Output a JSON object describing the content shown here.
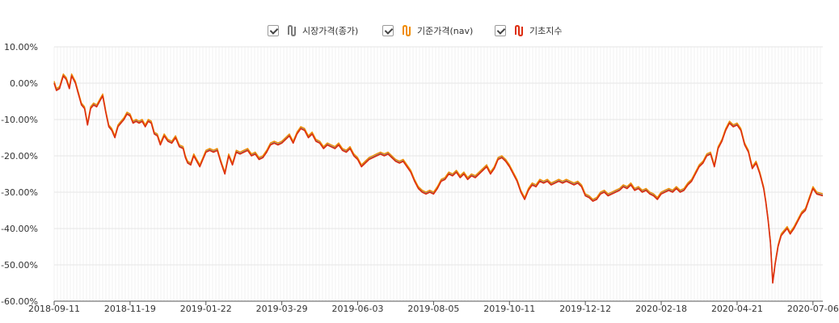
{
  "legend": {
    "items": [
      {
        "label": "시장가격(종가)",
        "color": "#7a7a7a",
        "icon": "series-toggle-icon"
      },
      {
        "label": "기준가격(nav)",
        "color": "#f08c00",
        "icon": "series-toggle-icon"
      },
      {
        "label": "기초지수",
        "color": "#dd2e10",
        "icon": "series-toggle-icon"
      }
    ]
  },
  "chart_data": {
    "type": "line",
    "xlabel": "",
    "ylabel": "",
    "ylim": [
      -60,
      10
    ],
    "y_ticks": [
      10,
      0,
      -10,
      -20,
      -30,
      -40,
      -50,
      -60
    ],
    "y_tick_labels": [
      "10.00%",
      "0.00%",
      "-10.00%",
      "-20.00%",
      "-30.00%",
      "-40.00%",
      "-50.00%",
      "-60.00%"
    ],
    "x_tick_labels": [
      "2018-09-11",
      "2018-11-19",
      "2019-01-22",
      "2019-03-29",
      "2019-06-03",
      "2019-08-05",
      "2019-10-11",
      "2019-12-12",
      "2020-02-18",
      "2020-04-21",
      "2020-07-06"
    ],
    "grid": true,
    "legend_position": "top-center",
    "series": [
      {
        "name": "시장가격(종가)",
        "color": "#7a7a7a"
      },
      {
        "name": "기준가격(nav)",
        "color": "#f08c00"
      },
      {
        "name": "기초지수",
        "color": "#dd2e10"
      }
    ],
    "x_domain": [
      0,
      10.13
    ],
    "points": [
      [
        0.0,
        0.0
      ],
      [
        0.03,
        -2.0
      ],
      [
        0.07,
        -1.5
      ],
      [
        0.12,
        2.0
      ],
      [
        0.16,
        1.0
      ],
      [
        0.2,
        -1.5
      ],
      [
        0.23,
        2.0
      ],
      [
        0.28,
        0.0
      ],
      [
        0.32,
        -3.0
      ],
      [
        0.36,
        -6.0
      ],
      [
        0.4,
        -7.0
      ],
      [
        0.44,
        -11.5
      ],
      [
        0.48,
        -7.0
      ],
      [
        0.52,
        -6.0
      ],
      [
        0.56,
        -6.5
      ],
      [
        0.6,
        -5.0
      ],
      [
        0.64,
        -3.5
      ],
      [
        0.68,
        -8.0
      ],
      [
        0.72,
        -12.0
      ],
      [
        0.76,
        -13.0
      ],
      [
        0.8,
        -15.0
      ],
      [
        0.84,
        -12.0
      ],
      [
        0.88,
        -11.0
      ],
      [
        0.92,
        -10.0
      ],
      [
        0.96,
        -8.5
      ],
      [
        1.0,
        -9.0
      ],
      [
        1.04,
        -11.0
      ],
      [
        1.08,
        -10.5
      ],
      [
        1.12,
        -11.0
      ],
      [
        1.16,
        -10.5
      ],
      [
        1.2,
        -12.0
      ],
      [
        1.24,
        -10.5
      ],
      [
        1.28,
        -11.0
      ],
      [
        1.32,
        -14.0
      ],
      [
        1.36,
        -14.5
      ],
      [
        1.4,
        -17.0
      ],
      [
        1.45,
        -14.5
      ],
      [
        1.5,
        -16.0
      ],
      [
        1.55,
        -16.5
      ],
      [
        1.6,
        -15.0
      ],
      [
        1.65,
        -17.5
      ],
      [
        1.7,
        -18.0
      ],
      [
        1.73,
        -20.5
      ],
      [
        1.76,
        -22.0
      ],
      [
        1.8,
        -22.5
      ],
      [
        1.84,
        -20.0
      ],
      [
        1.88,
        -21.5
      ],
      [
        1.92,
        -23.0
      ],
      [
        1.96,
        -21.0
      ],
      [
        2.0,
        -19.0
      ],
      [
        2.05,
        -18.5
      ],
      [
        2.1,
        -19.0
      ],
      [
        2.15,
        -18.5
      ],
      [
        2.2,
        -22.0
      ],
      [
        2.25,
        -25.0
      ],
      [
        2.3,
        -20.0
      ],
      [
        2.35,
        -22.5
      ],
      [
        2.4,
        -19.0
      ],
      [
        2.45,
        -19.5
      ],
      [
        2.5,
        -19.0
      ],
      [
        2.55,
        -18.5
      ],
      [
        2.6,
        -20.0
      ],
      [
        2.65,
        -19.5
      ],
      [
        2.7,
        -21.0
      ],
      [
        2.75,
        -20.5
      ],
      [
        2.8,
        -19.0
      ],
      [
        2.85,
        -17.0
      ],
      [
        2.9,
        -16.5
      ],
      [
        2.95,
        -17.0
      ],
      [
        3.0,
        -16.5
      ],
      [
        3.05,
        -15.5
      ],
      [
        3.1,
        -14.5
      ],
      [
        3.15,
        -16.5
      ],
      [
        3.2,
        -14.0
      ],
      [
        3.25,
        -12.5
      ],
      [
        3.3,
        -13.0
      ],
      [
        3.35,
        -15.0
      ],
      [
        3.4,
        -14.0
      ],
      [
        3.45,
        -16.0
      ],
      [
        3.5,
        -16.5
      ],
      [
        3.55,
        -18.0
      ],
      [
        3.6,
        -17.0
      ],
      [
        3.65,
        -17.5
      ],
      [
        3.7,
        -18.0
      ],
      [
        3.75,
        -17.0
      ],
      [
        3.8,
        -18.5
      ],
      [
        3.85,
        -19.0
      ],
      [
        3.9,
        -18.0
      ],
      [
        3.95,
        -20.0
      ],
      [
        4.0,
        -21.0
      ],
      [
        4.05,
        -23.0
      ],
      [
        4.1,
        -22.0
      ],
      [
        4.15,
        -21.0
      ],
      [
        4.2,
        -20.5
      ],
      [
        4.25,
        -20.0
      ],
      [
        4.3,
        -19.5
      ],
      [
        4.35,
        -20.0
      ],
      [
        4.4,
        -19.5
      ],
      [
        4.45,
        -20.5
      ],
      [
        4.5,
        -21.5
      ],
      [
        4.55,
        -22.0
      ],
      [
        4.6,
        -21.5
      ],
      [
        4.65,
        -23.0
      ],
      [
        4.7,
        -24.5
      ],
      [
        4.75,
        -27.0
      ],
      [
        4.8,
        -29.0
      ],
      [
        4.85,
        -30.0
      ],
      [
        4.9,
        -30.5
      ],
      [
        4.95,
        -30.0
      ],
      [
        5.0,
        -30.5
      ],
      [
        5.05,
        -29.0
      ],
      [
        5.1,
        -27.0
      ],
      [
        5.15,
        -26.5
      ],
      [
        5.2,
        -25.0
      ],
      [
        5.25,
        -25.5
      ],
      [
        5.3,
        -24.5
      ],
      [
        5.35,
        -26.0
      ],
      [
        5.4,
        -25.0
      ],
      [
        5.45,
        -26.5
      ],
      [
        5.5,
        -25.5
      ],
      [
        5.55,
        -26.0
      ],
      [
        5.6,
        -25.0
      ],
      [
        5.65,
        -24.0
      ],
      [
        5.7,
        -23.0
      ],
      [
        5.75,
        -25.0
      ],
      [
        5.8,
        -23.5
      ],
      [
        5.85,
        -21.0
      ],
      [
        5.9,
        -20.5
      ],
      [
        5.95,
        -21.5
      ],
      [
        6.0,
        -23.0
      ],
      [
        6.05,
        -25.0
      ],
      [
        6.1,
        -27.0
      ],
      [
        6.15,
        -30.0
      ],
      [
        6.2,
        -32.0
      ],
      [
        6.25,
        -29.5
      ],
      [
        6.3,
        -28.0
      ],
      [
        6.35,
        -28.5
      ],
      [
        6.4,
        -27.0
      ],
      [
        6.45,
        -27.5
      ],
      [
        6.5,
        -27.0
      ],
      [
        6.55,
        -28.0
      ],
      [
        6.6,
        -27.5
      ],
      [
        6.65,
        -27.0
      ],
      [
        6.7,
        -27.5
      ],
      [
        6.75,
        -27.0
      ],
      [
        6.8,
        -27.5
      ],
      [
        6.85,
        -28.0
      ],
      [
        6.9,
        -27.5
      ],
      [
        6.95,
        -28.5
      ],
      [
        7.0,
        -31.0
      ],
      [
        7.05,
        -31.5
      ],
      [
        7.1,
        -32.5
      ],
      [
        7.15,
        -32.0
      ],
      [
        7.2,
        -30.5
      ],
      [
        7.25,
        -30.0
      ],
      [
        7.3,
        -31.0
      ],
      [
        7.35,
        -30.5
      ],
      [
        7.4,
        -30.0
      ],
      [
        7.45,
        -29.5
      ],
      [
        7.5,
        -28.5
      ],
      [
        7.55,
        -29.0
      ],
      [
        7.6,
        -28.0
      ],
      [
        7.65,
        -29.5
      ],
      [
        7.7,
        -29.0
      ],
      [
        7.75,
        -30.0
      ],
      [
        7.8,
        -29.5
      ],
      [
        7.85,
        -30.5
      ],
      [
        7.9,
        -31.0
      ],
      [
        7.95,
        -32.0
      ],
      [
        8.0,
        -30.5
      ],
      [
        8.05,
        -30.0
      ],
      [
        8.1,
        -29.5
      ],
      [
        8.15,
        -30.0
      ],
      [
        8.2,
        -29.0
      ],
      [
        8.25,
        -30.0
      ],
      [
        8.3,
        -29.5
      ],
      [
        8.35,
        -28.0
      ],
      [
        8.4,
        -27.0
      ],
      [
        8.45,
        -25.0
      ],
      [
        8.5,
        -23.0
      ],
      [
        8.55,
        -22.0
      ],
      [
        8.6,
        -20.0
      ],
      [
        8.65,
        -19.5
      ],
      [
        8.7,
        -23.0
      ],
      [
        8.75,
        -18.0
      ],
      [
        8.8,
        -16.0
      ],
      [
        8.85,
        -13.0
      ],
      [
        8.9,
        -11.0
      ],
      [
        8.95,
        -12.0
      ],
      [
        9.0,
        -11.5
      ],
      [
        9.05,
        -13.0
      ],
      [
        9.1,
        -17.0
      ],
      [
        9.15,
        -19.0
      ],
      [
        9.2,
        -23.5
      ],
      [
        9.25,
        -22.0
      ],
      [
        9.3,
        -25.0
      ],
      [
        9.35,
        -29.0
      ],
      [
        9.38,
        -33.0
      ],
      [
        9.41,
        -38.0
      ],
      [
        9.44,
        -44.0
      ],
      [
        9.47,
        -55.0
      ],
      [
        9.5,
        -50.0
      ],
      [
        9.54,
        -45.0
      ],
      [
        9.58,
        -42.0
      ],
      [
        9.62,
        -41.0
      ],
      [
        9.66,
        -40.0
      ],
      [
        9.7,
        -41.5
      ],
      [
        9.75,
        -40.0
      ],
      [
        9.8,
        -38.0
      ],
      [
        9.85,
        -36.0
      ],
      [
        9.9,
        -35.0
      ],
      [
        9.95,
        -32.0
      ],
      [
        10.0,
        -29.0
      ],
      [
        10.05,
        -30.5
      ],
      [
        10.13,
        -31.0
      ]
    ]
  }
}
